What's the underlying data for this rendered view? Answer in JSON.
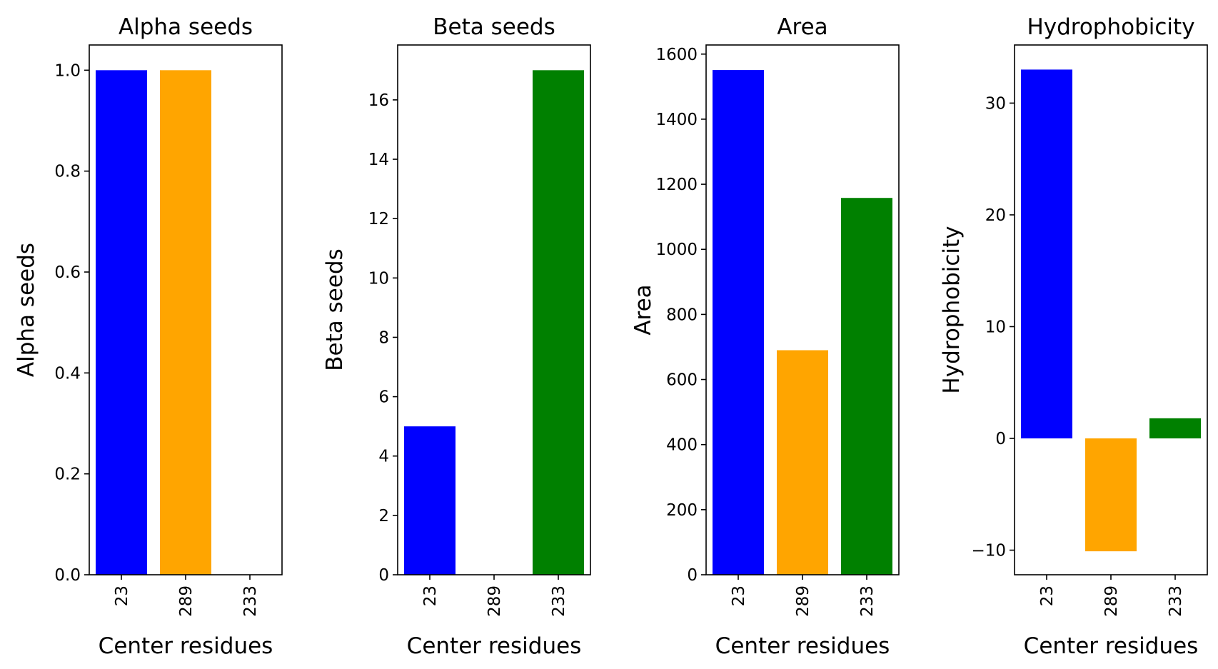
{
  "chart_data": [
    {
      "type": "bar",
      "title": "Alpha seeds",
      "xlabel": "Center residues",
      "ylabel": "Alpha seeds",
      "categories": [
        "23",
        "289",
        "233"
      ],
      "values": [
        1,
        1,
        0
      ],
      "colors": [
        "#0000ff",
        "#ffa500",
        "#008000"
      ],
      "ylim": [
        0,
        1.05
      ],
      "yticks": [
        0,
        0.2,
        0.4,
        0.6,
        0.8,
        1.0
      ],
      "ytick_labels": [
        "0.0",
        "0.2",
        "0.4",
        "0.6",
        "0.8",
        "1.0"
      ],
      "grid": false
    },
    {
      "type": "bar",
      "title": "Beta seeds",
      "xlabel": "Center residues",
      "ylabel": "Beta seeds",
      "categories": [
        "23",
        "289",
        "233"
      ],
      "values": [
        5,
        0,
        17
      ],
      "colors": [
        "#0000ff",
        "#ffa500",
        "#008000"
      ],
      "ylim": [
        0,
        17.85
      ],
      "yticks": [
        0,
        2,
        4,
        6,
        8,
        10,
        12,
        14,
        16
      ],
      "ytick_labels": [
        "0",
        "2",
        "4",
        "6",
        "8",
        "10",
        "12",
        "14",
        "16"
      ],
      "grid": false
    },
    {
      "type": "bar",
      "title": "Area",
      "xlabel": "Center residues",
      "ylabel": "Area",
      "categories": [
        "23",
        "289",
        "233"
      ],
      "values": [
        1551,
        690,
        1158
      ],
      "colors": [
        "#0000ff",
        "#ffa500",
        "#008000"
      ],
      "ylim": [
        0,
        1628
      ],
      "yticks": [
        0,
        200,
        400,
        600,
        800,
        1000,
        1200,
        1400,
        1600
      ],
      "ytick_labels": [
        "0",
        "200",
        "400",
        "600",
        "800",
        "1000",
        "1200",
        "1400",
        "1600"
      ],
      "grid": false
    },
    {
      "type": "bar",
      "title": "Hydrophobicity",
      "xlabel": "Center residues",
      "ylabel": "Hydrophobicity",
      "categories": [
        "23",
        "289",
        "233"
      ],
      "values": [
        33,
        -10.1,
        1.8
      ],
      "colors": [
        "#0000ff",
        "#ffa500",
        "#008000"
      ],
      "ylim": [
        -12.2,
        35.2
      ],
      "yticks": [
        -10,
        0,
        10,
        20,
        30
      ],
      "ytick_labels": [
        "−10",
        "0",
        "10",
        "20",
        "30"
      ],
      "grid": false
    }
  ]
}
